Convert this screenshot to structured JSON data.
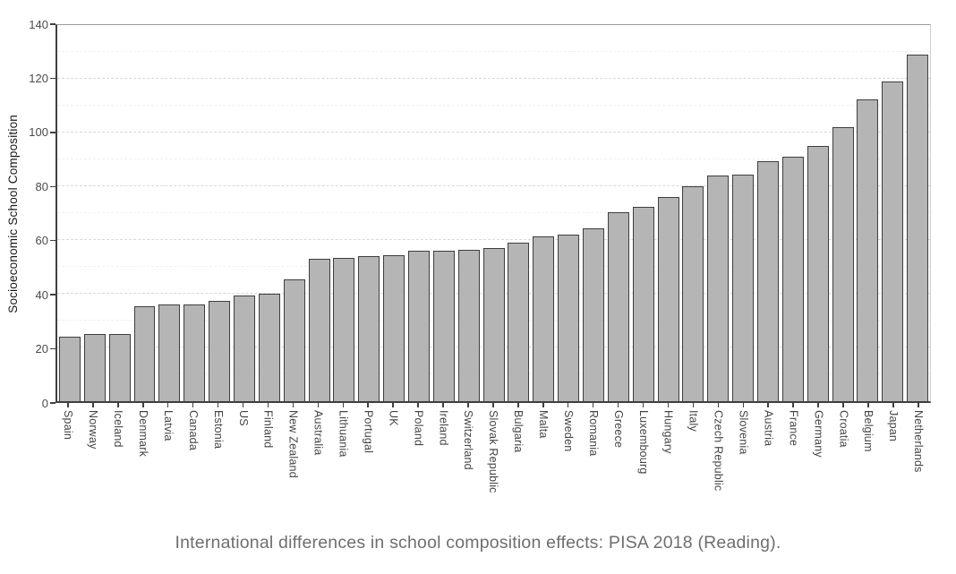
{
  "chart_data": {
    "type": "bar",
    "title": "",
    "xlabel": "",
    "ylabel": "Socioeconomic School Composition",
    "ylim": [
      0,
      140
    ],
    "yticks": [
      0,
      20,
      40,
      60,
      80,
      100,
      120,
      140
    ],
    "grid": "horizontal dashed major gridlines with fainter dashed minor gridlines every 10 units",
    "legend_position": "none",
    "bar_fill_color": "#b5b5b5",
    "bar_border_color": "#3e3e3e",
    "axis_line_color": "#3f3f3f",
    "categories": [
      "Spain",
      "Norway",
      "Iceland",
      "Denmark",
      "Latvia",
      "Canada",
      "Estonia",
      "US",
      "Finland",
      "New Zealand",
      "Australia",
      "Lithuania",
      "Portugal",
      "UK",
      "Poland",
      "Ireland",
      "Switzerland",
      "Slovak Republic",
      "Bulgaria",
      "Malta",
      "Sweden",
      "Romania",
      "Greece",
      "Luxembourg",
      "Hungary",
      "Italy",
      "Czech Republic",
      "Slovenia",
      "Austria",
      "France",
      "Germany",
      "Croatia",
      "Belgium",
      "Japan",
      "Netherlands"
    ],
    "values": [
      24,
      25,
      25,
      35.5,
      36,
      36,
      37.5,
      39.5,
      40,
      45.5,
      53,
      53.5,
      54,
      54.5,
      56,
      56,
      56.5,
      57,
      59,
      61.5,
      62,
      64.5,
      70.5,
      72.5,
      76,
      80,
      84,
      84.5,
      89.5,
      91,
      95,
      102,
      112.5,
      119,
      129
    ]
  },
  "caption": "International differences in school composition effects: PISA 2018 (Reading)."
}
